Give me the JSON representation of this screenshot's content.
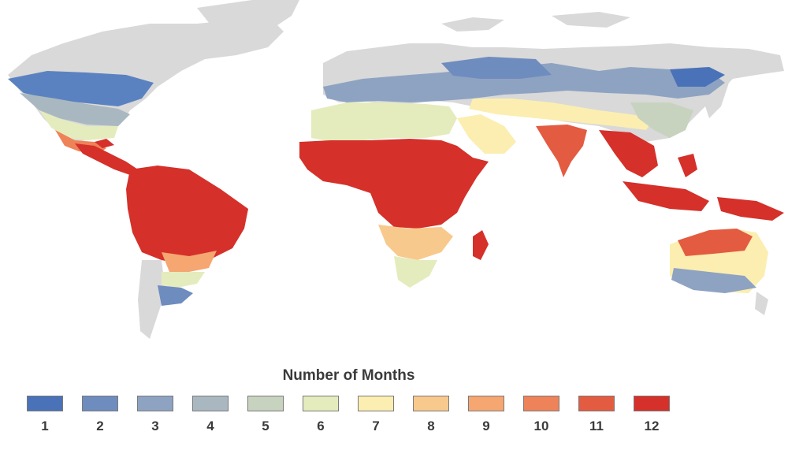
{
  "legend": {
    "title": "Number of Months",
    "items": [
      {
        "label": "1",
        "color": "#4a72b8"
      },
      {
        "label": "2",
        "color": "#6f8cbf"
      },
      {
        "label": "3",
        "color": "#8ea3c2"
      },
      {
        "label": "4",
        "color": "#a9b8c0"
      },
      {
        "label": "5",
        "color": "#c7d3bf"
      },
      {
        "label": "6",
        "color": "#e4ecbd"
      },
      {
        "label": "7",
        "color": "#fbeeb0"
      },
      {
        "label": "8",
        "color": "#f8c98c"
      },
      {
        "label": "9",
        "color": "#f5a671"
      },
      {
        "label": "10",
        "color": "#ee8258"
      },
      {
        "label": "11",
        "color": "#e35b40"
      },
      {
        "label": "12",
        "color": "#d5302a"
      }
    ]
  },
  "map": {
    "land_color": "#d9d9d9",
    "ocean_color": "#ffffff"
  }
}
